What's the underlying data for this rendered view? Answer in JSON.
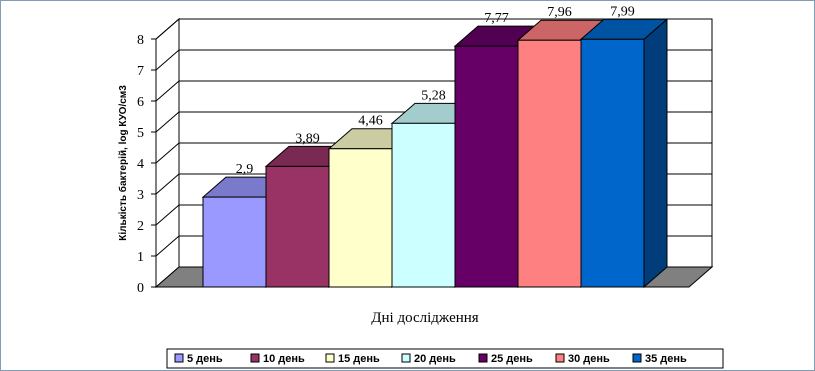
{
  "chart_data": {
    "type": "bar",
    "title": "",
    "xlabel": "Дні дослідження",
    "ylabel": "Кількість бактерій, log КУО/см3",
    "ylim": [
      0,
      8
    ],
    "yticks": [
      "0",
      "1",
      "2",
      "3",
      "4",
      "5",
      "6",
      "7",
      "8"
    ],
    "grid": true,
    "legend_position": "bottom",
    "categories": [
      "5 день",
      "10 день",
      "15 день",
      "20 день",
      "25 день",
      "30 день",
      "35 день"
    ],
    "values": [
      2.9,
      3.89,
      4.46,
      5.28,
      7.77,
      7.96,
      7.99
    ],
    "value_labels": [
      "2,9",
      "3,89",
      "4,46",
      "5,28",
      "7,77",
      "7,96",
      "7,99"
    ],
    "colors": [
      "#9999ff",
      "#993366",
      "#ffffcc",
      "#ccffff",
      "#660066",
      "#ff8080",
      "#0066cc"
    ]
  }
}
